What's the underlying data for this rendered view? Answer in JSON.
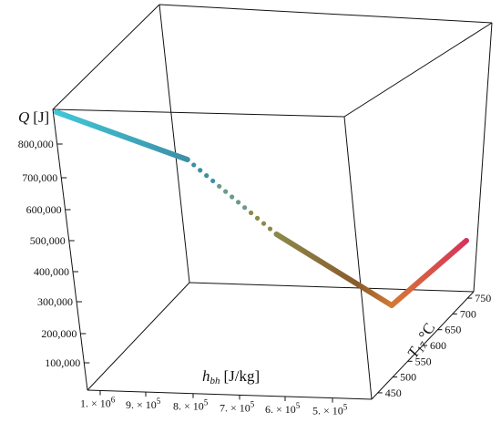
{
  "chart_data": {
    "type": "line3d",
    "axes": {
      "z": {
        "label": "Q",
        "unit": "[J]",
        "ticks": [
          "100,000",
          "200,000",
          "300,000",
          "400,000",
          "500,000",
          "600,000",
          "700,000",
          "800,000"
        ]
      },
      "x": {
        "label": "h",
        "label_sub": "bh",
        "unit": "[J/kg]",
        "ticks": [
          {
            "m": "1.",
            "e": "6"
          },
          {
            "m": "9.",
            "e": "5"
          },
          {
            "m": "8.",
            "e": "5"
          },
          {
            "m": "7.",
            "e": "5"
          },
          {
            "m": "6.",
            "e": "5"
          },
          {
            "m": "5.",
            "e": "5"
          }
        ]
      },
      "y": {
        "label": "T",
        "label_sub": "17",
        "unit": "°C",
        "ticks": [
          "450",
          "500",
          "550",
          "600",
          "650",
          "700",
          "750"
        ]
      }
    },
    "series": [
      {
        "segment": "upper",
        "style": "solid",
        "h_start": 1060000,
        "h_end": 810000,
        "Q_start": 870000,
        "Q_end": 730000
      },
      {
        "segment": "middle",
        "style": "dotted",
        "h_start": 810000,
        "h_end": 640000,
        "Q_start": 730000,
        "Q_end": 510000
      },
      {
        "segment": "lower",
        "style": "solid",
        "h_start": 640000,
        "h_end": 420000,
        "Q_start": 510000,
        "Q_end": 300000
      },
      {
        "segment": "rise",
        "style": "solid",
        "T_start": 450,
        "T_end": 750
      }
    ],
    "colors": {
      "cyan": "#40c7d6",
      "teal": "#3d8fa6",
      "olive": "#8a8a4a",
      "brown": "#8a5a2a",
      "orange": "#d47a34",
      "red": "#d8325a"
    },
    "grid": false
  }
}
